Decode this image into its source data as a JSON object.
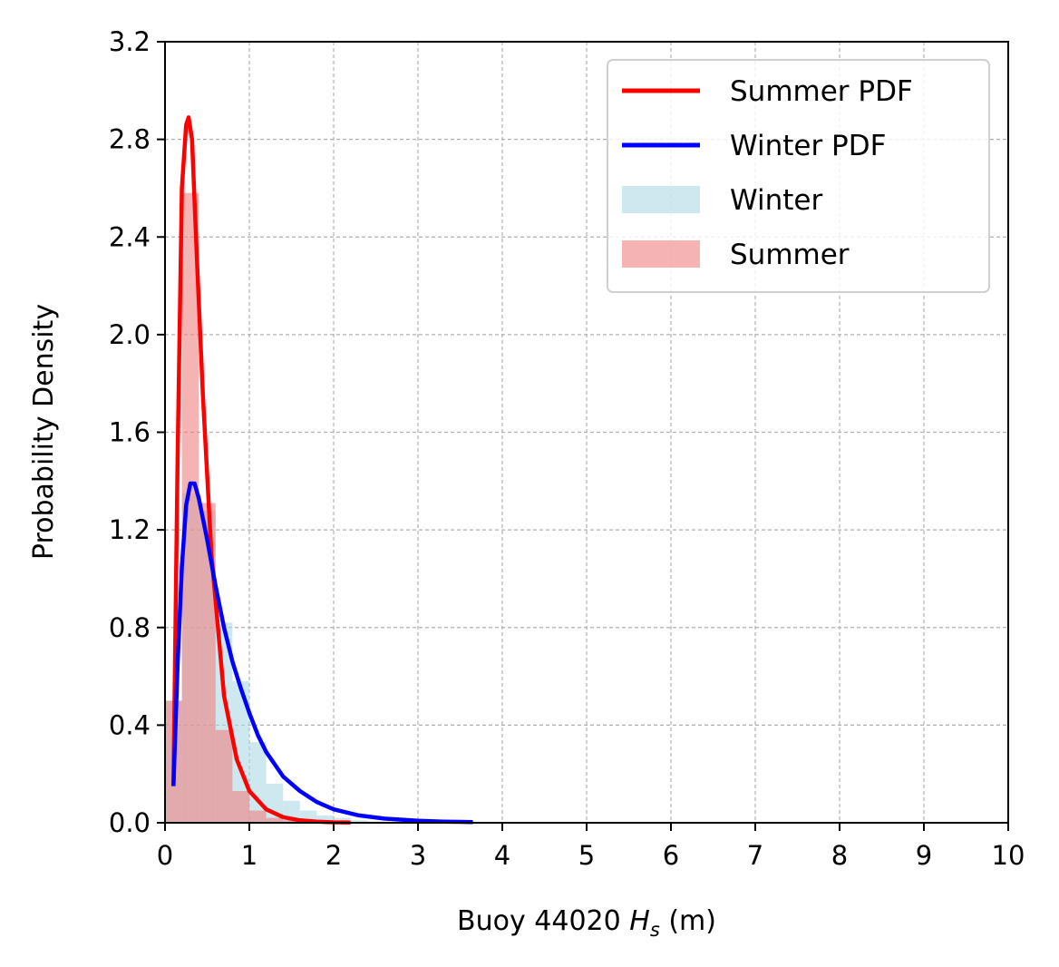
{
  "chart_data": {
    "type": "line",
    "title": "",
    "xlabel": {
      "prefix": "Buoy 44020 ",
      "symbol": "H",
      "subscript": "s",
      "suffix": " (m)"
    },
    "ylabel": "Probability Density",
    "xlim": [
      0,
      10
    ],
    "ylim": [
      0,
      3.2
    ],
    "xticks": [
      "0",
      "1",
      "2",
      "3",
      "4",
      "5",
      "6",
      "7",
      "8",
      "9",
      "10"
    ],
    "yticks": [
      "0.0",
      "0.4",
      "0.8",
      "1.2",
      "1.6",
      "2.0",
      "2.4",
      "2.8",
      "3.2"
    ],
    "grid": true,
    "legend_position": "top-right",
    "bin_width": 0.2,
    "histograms": [
      {
        "name": "Winter",
        "color": "#add8e6",
        "bins_start": [
          0,
          0.2,
          0.4,
          0.6,
          0.8,
          1.0,
          1.2,
          1.4,
          1.6,
          1.8,
          2.0,
          2.2,
          2.4
        ],
        "values": [
          0.5,
          1.35,
          1.28,
          0.82,
          0.58,
          0.33,
          0.16,
          0.09,
          0.05,
          0.03,
          0.02,
          0.01,
          0.005
        ]
      },
      {
        "name": "Summer",
        "color": "#f08080",
        "bins_start": [
          0,
          0.2,
          0.4,
          0.6,
          0.8,
          1.0,
          1.2,
          1.4
        ],
        "values": [
          0.5,
          2.58,
          1.31,
          0.38,
          0.13,
          0.05,
          0.02,
          0.01
        ]
      }
    ],
    "series": [
      {
        "name": "Summer PDF",
        "color": "#ff0000",
        "x": [
          0.1,
          0.15,
          0.2,
          0.25,
          0.28,
          0.32,
          0.38,
          0.45,
          0.55,
          0.7,
          0.85,
          1.0,
          1.2,
          1.4,
          1.6,
          1.8,
          2.0,
          2.2
        ],
        "y": [
          0.15,
          1.5,
          2.6,
          2.86,
          2.89,
          2.8,
          2.3,
          1.75,
          1.1,
          0.52,
          0.26,
          0.13,
          0.055,
          0.023,
          0.01,
          0.005,
          0.002,
          0.001
        ]
      },
      {
        "name": "Winter PDF",
        "color": "#0000ff",
        "x": [
          0.1,
          0.15,
          0.2,
          0.25,
          0.3,
          0.35,
          0.4,
          0.5,
          0.6,
          0.7,
          0.8,
          0.9,
          1.0,
          1.1,
          1.2,
          1.4,
          1.6,
          1.8,
          2.0,
          2.3,
          2.6,
          3.0,
          3.3,
          3.65
        ],
        "y": [
          0.15,
          0.65,
          1.05,
          1.3,
          1.39,
          1.39,
          1.33,
          1.16,
          0.97,
          0.8,
          0.66,
          0.55,
          0.45,
          0.36,
          0.29,
          0.19,
          0.13,
          0.085,
          0.055,
          0.03,
          0.017,
          0.008,
          0.005,
          0.003
        ]
      }
    ],
    "legend": [
      "Summer PDF",
      "Winter PDF",
      "Winter",
      "Summer"
    ]
  }
}
